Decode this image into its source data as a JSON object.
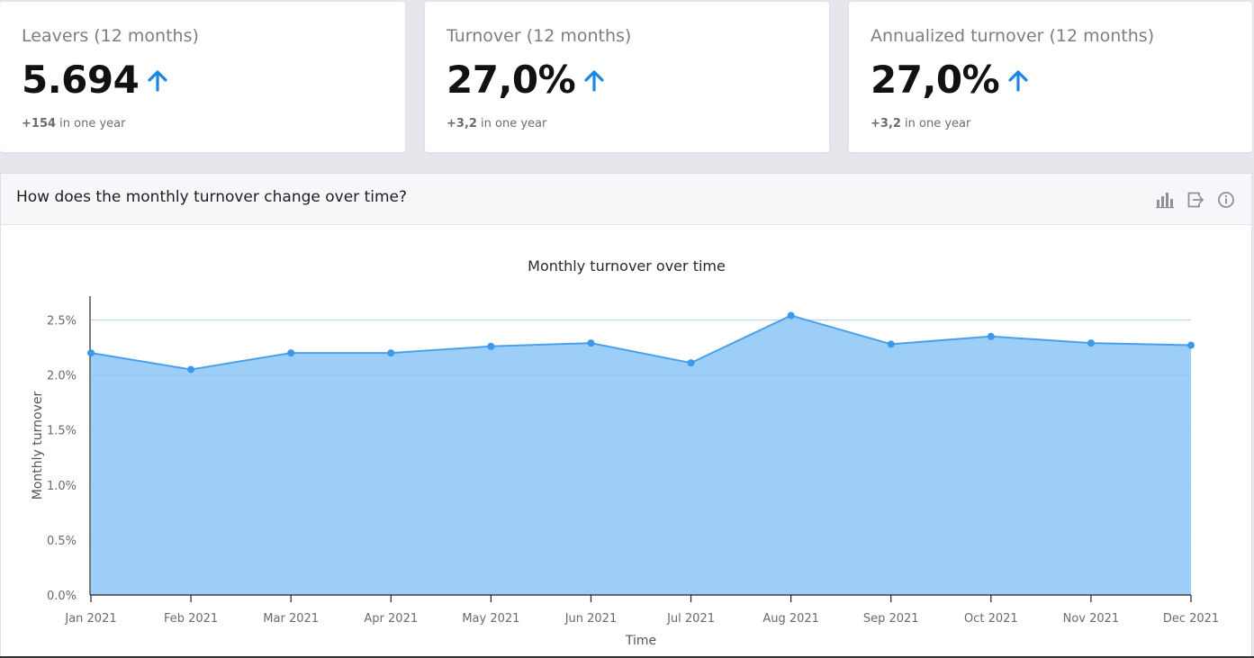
{
  "kpis": [
    {
      "title": "Leavers (12 months)",
      "value": "5.694",
      "delta_value": "+154",
      "delta_text": " in one year",
      "trend": "up"
    },
    {
      "title": "Turnover (12 months)",
      "value": "27,0%",
      "delta_value": "+3,2",
      "delta_text": " in one year",
      "trend": "up"
    },
    {
      "title": "Annualized turnover (12 months)",
      "value": "27,0%",
      "delta_value": "+3,2",
      "delta_text": " in one year",
      "trend": "up"
    }
  ],
  "panel": {
    "question": "How does the monthly turnover change over time?",
    "tools": [
      "bar-chart-icon",
      "export-icon",
      "info-icon"
    ]
  },
  "colors": {
    "accent": "#1a86e8",
    "area_fill": "#9ccef8",
    "line": "#4aa0ec",
    "point": "#3d98ea"
  },
  "chart_data": {
    "type": "area",
    "title": "Monthly turnover over time",
    "xlabel": "Time",
    "ylabel": "Monthly turnover",
    "categories": [
      "Jan 2021",
      "Feb 2021",
      "Mar 2021",
      "Apr 2021",
      "May 2021",
      "Jun 2021",
      "Jul 2021",
      "Aug 2021",
      "Sep 2021",
      "Oct 2021",
      "Nov 2021",
      "Dec 2021"
    ],
    "values": [
      2.2,
      2.05,
      2.2,
      2.2,
      2.26,
      2.29,
      2.11,
      2.54,
      2.28,
      2.35,
      2.29,
      2.27
    ],
    "y_ticks": [
      "0.0%",
      "0.5%",
      "1.0%",
      "1.5%",
      "2.0%",
      "2.5%"
    ],
    "ylim": [
      0,
      2.7
    ],
    "grid": true
  }
}
